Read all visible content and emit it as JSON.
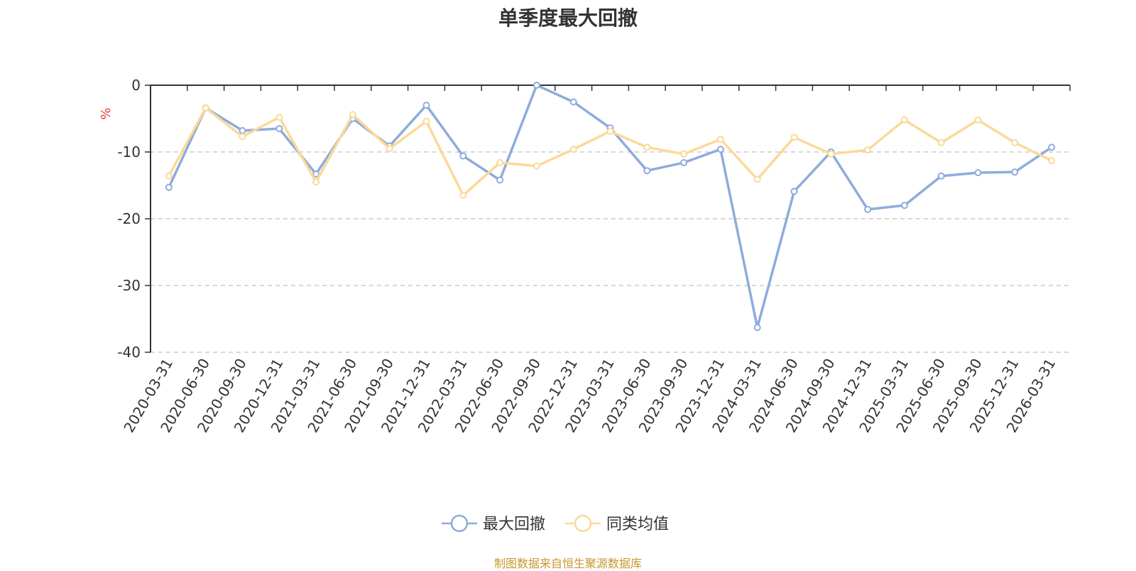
{
  "chart_data": {
    "type": "line",
    "title": "单季度最大回撤",
    "ylabel": "%",
    "ylim": [
      -40,
      0
    ],
    "yticks": [
      0,
      -10,
      -20,
      -30,
      -40
    ],
    "grid": "horizontal dashed",
    "legend_position": "bottom-center",
    "categories": [
      "2020-03-31",
      "2020-06-30",
      "2020-09-30",
      "2020-12-31",
      "2021-03-31",
      "2021-06-30",
      "2021-09-30",
      "2021-12-31",
      "2022-03-31",
      "2022-06-30",
      "2022-09-30",
      "2022-12-31",
      "2023-03-31",
      "2023-06-30",
      "2023-09-30",
      "2023-12-31",
      "2024-03-31",
      "2024-06-30",
      "2024-09-30",
      "2024-12-31",
      "2025-03-31",
      "2025-06-30",
      "2025-09-30",
      "2025-12-31",
      "2026-03-31"
    ],
    "series": [
      {
        "name": "最大回撤",
        "color": "#8eacdb",
        "values": [
          -15.3,
          -3.4,
          -6.8,
          -6.5,
          -13.3,
          -5.0,
          -9.1,
          -3.0,
          -10.6,
          -14.2,
          0.0,
          -2.5,
          -6.4,
          -12.8,
          -11.6,
          -9.6,
          -36.3,
          -15.9,
          -10.0,
          -18.6,
          -18.0,
          -13.6,
          -13.1,
          -13.0,
          -9.3
        ]
      },
      {
        "name": "同类均值",
        "color": "#fbd998",
        "values": [
          -13.6,
          -3.4,
          -7.7,
          -4.8,
          -14.5,
          -4.4,
          -9.5,
          -5.4,
          -16.5,
          -11.6,
          -12.1,
          -9.6,
          -6.9,
          -9.3,
          -10.3,
          -8.1,
          -14.1,
          -7.8,
          -10.3,
          -9.7,
          -5.2,
          -8.6,
          -5.2,
          -8.6,
          -11.3
        ]
      }
    ],
    "source_note": "制图数据来自恒生聚源数据库"
  }
}
